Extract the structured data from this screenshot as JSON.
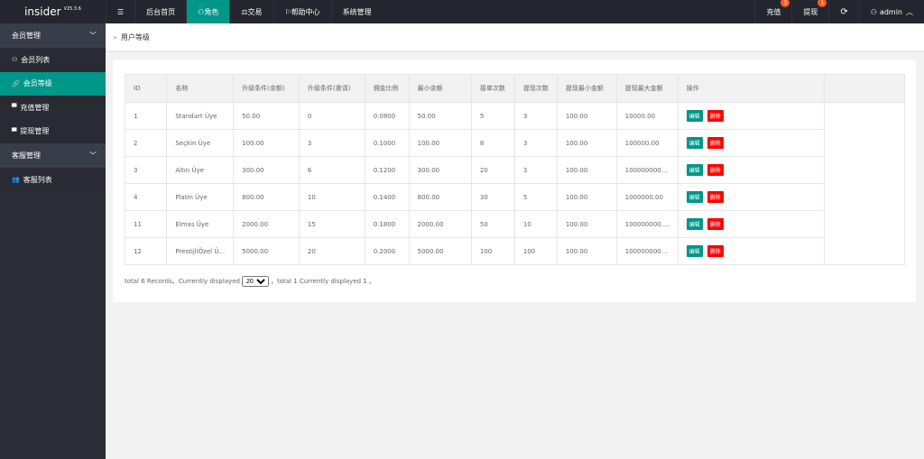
{
  "app": {
    "name": "insider",
    "version": "V25.3.6"
  },
  "nav": [
    {
      "icon": "menu-icon",
      "label": "☰"
    },
    {
      "label": "后台首页"
    },
    {
      "icon": "user-icon",
      "label": "角色",
      "active": true
    },
    {
      "icon": "scale-icon",
      "label": "交易"
    },
    {
      "icon": "flag-icon",
      "label": "帮助中心"
    },
    {
      "label": "系统管理"
    }
  ],
  "right": {
    "recharge": "充值",
    "recharge_badge": "3",
    "withdraw": "提现",
    "withdraw_badge": "1",
    "refresh": "⟳",
    "user": "admin"
  },
  "sidebar": {
    "groups": [
      {
        "label": "会员管理",
        "items": [
          {
            "icon": "user-icon",
            "label": "会员列表"
          },
          {
            "icon": "link-icon",
            "label": "会员等级",
            "active": true
          },
          {
            "icon": "chat-icon",
            "label": "充值管理"
          },
          {
            "icon": "chat-icon",
            "label": "提现管理"
          }
        ]
      },
      {
        "label": "客服管理",
        "items": [
          {
            "icon": "users-icon",
            "label": "客服列表"
          }
        ]
      }
    ]
  },
  "breadcrumb": "用户等级",
  "table": {
    "headers": [
      "ID",
      "名称",
      "升级条件(余额)",
      "升级条件(邀请)",
      "佣金比例",
      "最小余额",
      "接单次数",
      "提现次数",
      "提现最小金额",
      "提现最大金额",
      "操作",
      ""
    ],
    "rows": [
      [
        "1",
        "Standart Üye",
        "50.00",
        "0",
        "0.0800",
        "50.00",
        "5",
        "3",
        "100.00",
        "10000.00"
      ],
      [
        "2",
        "Seçkin Üye",
        "100.00",
        "3",
        "0.1000",
        "100.00",
        "8",
        "3",
        "100.00",
        "100000.00"
      ],
      [
        "3",
        "Altın Üye",
        "300.00",
        "6",
        "0.1200",
        "300.00",
        "20",
        "3",
        "100.00",
        "100000000..."
      ],
      [
        "4",
        "Platin Üye",
        "800.00",
        "10",
        "0.1400",
        "800.00",
        "30",
        "5",
        "100.00",
        "1000000.00"
      ],
      [
        "11",
        "Elmas Üye",
        "2000.00",
        "15",
        "0.1800",
        "2000.00",
        "50",
        "10",
        "100.00",
        "100000000...."
      ],
      [
        "12",
        "PrestijliÖzel Ü...",
        "5000.00",
        "20",
        "0.2000",
        "5000.00",
        "100",
        "100",
        "100.00",
        "100000000..."
      ]
    ],
    "edit": "编辑",
    "delete": "删除"
  },
  "pager": {
    "pre": "total 6 Records。Currently displayed",
    "per_page": "20",
    "post": "，total 1 Currently displayed 1 。"
  },
  "colors": {
    "accent": "#009688",
    "danger": "#ff0000",
    "topbar": "#23262e"
  }
}
